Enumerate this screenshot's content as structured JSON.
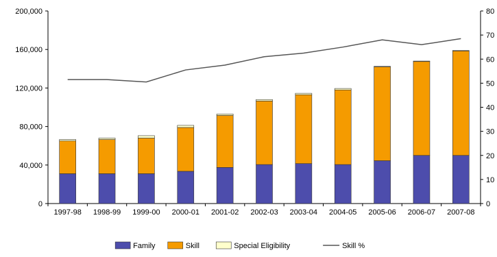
{
  "chart_data": {
    "type": "bar",
    "stacked": true,
    "title": "",
    "xlabel": "",
    "ylabel": "",
    "ylabel_right": "",
    "categories": [
      "1997-98",
      "1998-99",
      "1999-00",
      "2000-01",
      "2001-02",
      "2002-03",
      "2003-04",
      "2004-05",
      "2005-06",
      "2006-07",
      "2007-08"
    ],
    "ylim": [
      0,
      200000
    ],
    "yticks": [
      "0",
      "40,000",
      "80,000",
      "120,000",
      "160,000",
      "200,000"
    ],
    "ylim_right": [
      0,
      80
    ],
    "yticks_right": [
      "0",
      "10",
      "20",
      "30",
      "40",
      "50",
      "60",
      "70",
      "80"
    ],
    "grid": false,
    "legend_position": "bottom",
    "series": [
      {
        "name": "Family",
        "type": "bar",
        "axis": "left",
        "color": "#4d4dac",
        "values": [
          31000,
          31000,
          31000,
          33500,
          37500,
          40500,
          41500,
          40500,
          44500,
          50000,
          50000
        ]
      },
      {
        "name": "Skill",
        "type": "bar",
        "axis": "left",
        "color": "#f59b00",
        "values": [
          34000,
          35500,
          37000,
          45500,
          54000,
          66000,
          71500,
          77500,
          97500,
          97500,
          108500
        ]
      },
      {
        "name": "Special Eligibility",
        "type": "bar",
        "axis": "left",
        "color": "#ffffcc",
        "values": [
          1500,
          1500,
          2500,
          2200,
          1500,
          1500,
          1500,
          1500,
          500,
          500,
          500
        ]
      },
      {
        "name": "Skill %",
        "type": "line",
        "axis": "right",
        "color": "#555555",
        "values": [
          51.5,
          51.5,
          50.5,
          55.5,
          57.5,
          61,
          62.5,
          65,
          68,
          66,
          68.5
        ]
      }
    ]
  }
}
